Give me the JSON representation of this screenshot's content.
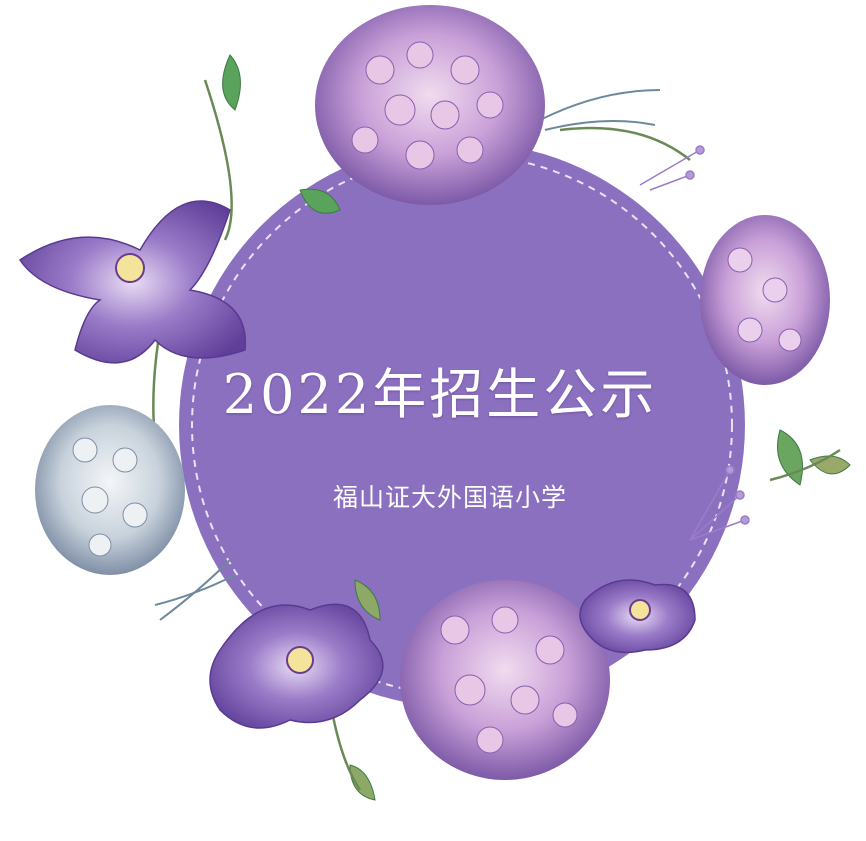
{
  "banner": {
    "title": "2022年招生公示",
    "subtitle": "福山证大外国语小学"
  },
  "colors": {
    "circle_fill": "#8c70c0",
    "dashed_ring": "#e9e2f5",
    "text": "#ffffff",
    "flower_purple": "#7b5bb0",
    "lilac": "#c9a8dc",
    "leaf_green": "#5aa35c"
  },
  "icons": [
    "flower-wreath",
    "iris-flower",
    "lilac-cluster",
    "hydrangea-cluster",
    "leaf"
  ]
}
